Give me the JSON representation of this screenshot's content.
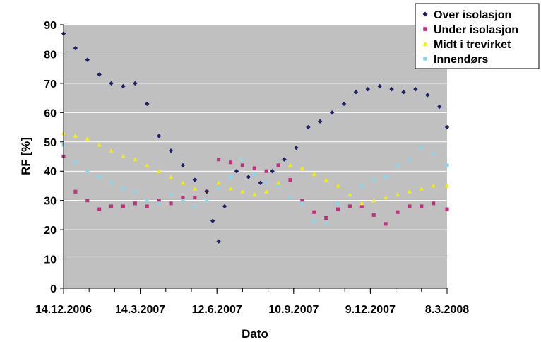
{
  "chart_data": {
    "type": "scatter",
    "title": "",
    "xlabel": "Dato",
    "ylabel": "RF [%]",
    "x_type": "date",
    "xlim": [
      "2006-12-14",
      "2008-03-08"
    ],
    "ylim": [
      0,
      90
    ],
    "y_ticks": [
      0,
      10,
      20,
      30,
      40,
      50,
      60,
      70,
      80,
      90
    ],
    "x_tick_labels": [
      "14.12.2006",
      "14.3.2007",
      "12.6.2007",
      "10.9.2007",
      "9.12.2007",
      "8.3.2008"
    ],
    "x_tick_dates": [
      "2006-12-14",
      "2007-03-14",
      "2007-06-12",
      "2007-09-10",
      "2007-12-09",
      "2008-03-08"
    ],
    "grid": true,
    "plot_background": "#c0c0c0",
    "legend_position": "top-right",
    "series": [
      {
        "name": "Over isolasjon",
        "color": "#1f1f6b",
        "marker": "diamond",
        "points": [
          [
            "2006-12-14",
            87
          ],
          [
            "2006-12-28",
            82
          ],
          [
            "2007-01-11",
            78
          ],
          [
            "2007-01-25",
            73
          ],
          [
            "2007-02-08",
            70
          ],
          [
            "2007-02-22",
            69
          ],
          [
            "2007-03-08",
            70
          ],
          [
            "2007-03-22",
            63
          ],
          [
            "2007-04-05",
            52
          ],
          [
            "2007-04-19",
            47
          ],
          [
            "2007-05-03",
            42
          ],
          [
            "2007-05-17",
            37
          ],
          [
            "2007-05-31",
            33
          ],
          [
            "2007-06-07",
            23
          ],
          [
            "2007-06-14",
            16
          ],
          [
            "2007-06-21",
            28
          ],
          [
            "2007-07-05",
            40
          ],
          [
            "2007-07-19",
            38
          ],
          [
            "2007-08-02",
            36
          ],
          [
            "2007-08-16",
            40
          ],
          [
            "2007-08-30",
            44
          ],
          [
            "2007-09-13",
            48
          ],
          [
            "2007-09-27",
            55
          ],
          [
            "2007-10-11",
            57
          ],
          [
            "2007-10-25",
            60
          ],
          [
            "2007-11-08",
            63
          ],
          [
            "2007-11-22",
            67
          ],
          [
            "2007-12-06",
            68
          ],
          [
            "2007-12-20",
            69
          ],
          [
            "2008-01-03",
            68
          ],
          [
            "2008-01-17",
            67
          ],
          [
            "2008-01-31",
            68
          ],
          [
            "2008-02-14",
            66
          ],
          [
            "2008-02-28",
            62
          ],
          [
            "2008-03-08",
            55
          ]
        ]
      },
      {
        "name": "Under isolasjon",
        "color": "#c0307f",
        "marker": "square",
        "points": [
          [
            "2006-12-14",
            45
          ],
          [
            "2006-12-28",
            33
          ],
          [
            "2007-01-11",
            30
          ],
          [
            "2007-01-25",
            27
          ],
          [
            "2007-02-08",
            28
          ],
          [
            "2007-02-22",
            28
          ],
          [
            "2007-03-08",
            29
          ],
          [
            "2007-03-22",
            28
          ],
          [
            "2007-04-05",
            30
          ],
          [
            "2007-04-19",
            29
          ],
          [
            "2007-05-03",
            31
          ],
          [
            "2007-05-17",
            31
          ],
          [
            "2007-05-31",
            33
          ],
          [
            "2007-06-14",
            44
          ],
          [
            "2007-06-28",
            43
          ],
          [
            "2007-07-12",
            42
          ],
          [
            "2007-07-26",
            41
          ],
          [
            "2007-08-09",
            40
          ],
          [
            "2007-08-23",
            42
          ],
          [
            "2007-09-06",
            37
          ],
          [
            "2007-09-20",
            30
          ],
          [
            "2007-10-04",
            26
          ],
          [
            "2007-10-18",
            24
          ],
          [
            "2007-11-01",
            27
          ],
          [
            "2007-11-15",
            28
          ],
          [
            "2007-11-29",
            28
          ],
          [
            "2007-12-13",
            25
          ],
          [
            "2007-12-27",
            22
          ],
          [
            "2008-01-10",
            26
          ],
          [
            "2008-01-24",
            28
          ],
          [
            "2008-02-07",
            28
          ],
          [
            "2008-02-21",
            29
          ],
          [
            "2008-03-08",
            27
          ]
        ]
      },
      {
        "name": "Midt i trevirket",
        "color": "#f0f000",
        "marker": "triangle",
        "points": [
          [
            "2006-12-14",
            53
          ],
          [
            "2006-12-28",
            52
          ],
          [
            "2007-01-11",
            51
          ],
          [
            "2007-01-25",
            49
          ],
          [
            "2007-02-08",
            47
          ],
          [
            "2007-02-22",
            45
          ],
          [
            "2007-03-08",
            44
          ],
          [
            "2007-03-22",
            42
          ],
          [
            "2007-04-05",
            40
          ],
          [
            "2007-04-19",
            38
          ],
          [
            "2007-05-03",
            36
          ],
          [
            "2007-05-17",
            34
          ],
          [
            "2007-05-31",
            33
          ],
          [
            "2007-06-14",
            36
          ],
          [
            "2007-06-28",
            34
          ],
          [
            "2007-07-12",
            33
          ],
          [
            "2007-07-26",
            32
          ],
          [
            "2007-08-09",
            33
          ],
          [
            "2007-08-23",
            36
          ],
          [
            "2007-09-06",
            42
          ],
          [
            "2007-09-20",
            41
          ],
          [
            "2007-10-04",
            39
          ],
          [
            "2007-10-18",
            37
          ],
          [
            "2007-11-01",
            35
          ],
          [
            "2007-11-15",
            32
          ],
          [
            "2007-11-29",
            29
          ],
          [
            "2007-12-13",
            30
          ],
          [
            "2007-12-27",
            31
          ],
          [
            "2008-01-10",
            32
          ],
          [
            "2008-01-24",
            33
          ],
          [
            "2008-02-07",
            34
          ],
          [
            "2008-02-21",
            35
          ],
          [
            "2008-03-08",
            35
          ]
        ]
      },
      {
        "name": "Innendørs",
        "color": "#8fd3e6",
        "marker": "square",
        "points": [
          [
            "2006-12-14",
            49
          ],
          [
            "2006-12-28",
            43
          ],
          [
            "2007-01-11",
            40
          ],
          [
            "2007-01-25",
            38
          ],
          [
            "2007-02-08",
            36
          ],
          [
            "2007-02-22",
            34
          ],
          [
            "2007-03-08",
            33
          ],
          [
            "2007-03-22",
            30
          ],
          [
            "2007-04-05",
            29
          ],
          [
            "2007-04-19",
            32
          ],
          [
            "2007-05-03",
            30
          ],
          [
            "2007-05-17",
            28
          ],
          [
            "2007-05-31",
            30
          ],
          [
            "2007-06-14",
            34
          ],
          [
            "2007-06-28",
            38
          ],
          [
            "2007-07-12",
            44
          ],
          [
            "2007-07-26",
            39
          ],
          [
            "2007-08-09",
            36
          ],
          [
            "2007-08-23",
            35
          ],
          [
            "2007-09-06",
            31
          ],
          [
            "2007-09-20",
            29
          ],
          [
            "2007-10-04",
            23
          ],
          [
            "2007-10-18",
            22
          ],
          [
            "2007-11-01",
            29
          ],
          [
            "2007-11-15",
            32
          ],
          [
            "2007-11-29",
            35
          ],
          [
            "2007-12-13",
            37
          ],
          [
            "2007-12-27",
            38
          ],
          [
            "2008-01-10",
            42
          ],
          [
            "2008-01-24",
            44
          ],
          [
            "2008-02-07",
            48
          ],
          [
            "2008-02-21",
            46
          ],
          [
            "2008-03-08",
            42
          ]
        ]
      }
    ]
  }
}
